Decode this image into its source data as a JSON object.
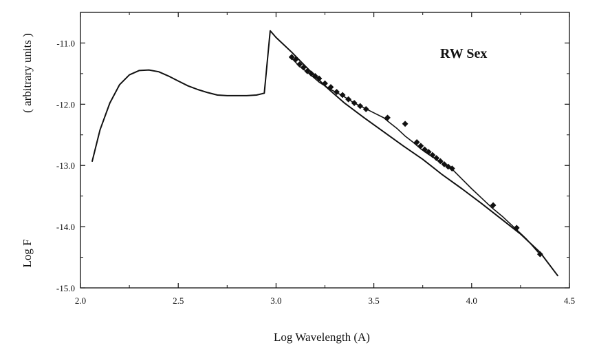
{
  "chart_data": {
    "type": "line",
    "title": "",
    "xlabel": "Log Wavelength (A)",
    "ylabel_main": "Log F",
    "ylabel_units": "( arbitrary units )",
    "annotation": "RW Sex",
    "xlim": [
      2.0,
      4.5
    ],
    "ylim": [
      -15.0,
      -10.5
    ],
    "xticks": [
      {
        "value": 2.0,
        "label": "2.0"
      },
      {
        "value": 2.5,
        "label": "2.5"
      },
      {
        "value": 3.0,
        "label": "3.0"
      },
      {
        "value": 3.5,
        "label": "3.5"
      },
      {
        "value": 4.0,
        "label": "4.0"
      },
      {
        "value": 4.5,
        "label": "4.5"
      }
    ],
    "yticks": [
      {
        "value": -11.0,
        "label": "-11.0"
      },
      {
        "value": -12.0,
        "label": "-12.0"
      },
      {
        "value": -13.0,
        "label": "-13.0"
      },
      {
        "value": -14.0,
        "label": "-14.0"
      },
      {
        "value": -15.0,
        "label": "-15.0"
      }
    ],
    "grid": false,
    "legend": "none",
    "series": [
      {
        "style": "model",
        "x": [
          2.06,
          2.1,
          2.15,
          2.2,
          2.25,
          2.3,
          2.35,
          2.4,
          2.45,
          2.5,
          2.55,
          2.6,
          2.65,
          2.7,
          2.75,
          2.8,
          2.85,
          2.9,
          2.94,
          2.97,
          3.0,
          3.03,
          3.08,
          3.15,
          3.25,
          3.35,
          3.45,
          3.55,
          3.65,
          3.75,
          3.85,
          3.95,
          4.05,
          4.15,
          4.25,
          4.35,
          4.44
        ],
        "y": [
          -12.93,
          -12.42,
          -11.98,
          -11.68,
          -11.52,
          -11.45,
          -11.44,
          -11.47,
          -11.54,
          -11.62,
          -11.7,
          -11.76,
          -11.81,
          -11.85,
          -11.86,
          -11.86,
          -11.86,
          -11.85,
          -11.82,
          -10.8,
          -10.91,
          -11.0,
          -11.15,
          -11.38,
          -11.7,
          -11.98,
          -12.22,
          -12.45,
          -12.68,
          -12.9,
          -13.15,
          -13.38,
          -13.62,
          -13.87,
          -14.12,
          -14.42,
          -14.8
        ]
      },
      {
        "style": "observed",
        "x": [
          3.08,
          3.12,
          3.17,
          3.22,
          3.28,
          3.34,
          3.4,
          3.45,
          3.5,
          3.55,
          3.58,
          3.62,
          3.66,
          3.7,
          3.74,
          3.78,
          3.82,
          3.86,
          3.9,
          3.95,
          4.0,
          4.05,
          4.1,
          4.16,
          4.22,
          4.28,
          4.34
        ],
        "y": [
          -11.25,
          -11.38,
          -11.5,
          -11.64,
          -11.76,
          -11.86,
          -11.98,
          -12.06,
          -12.14,
          -12.22,
          -12.3,
          -12.4,
          -12.52,
          -12.62,
          -12.73,
          -12.82,
          -12.9,
          -12.98,
          -13.06,
          -13.22,
          -13.38,
          -13.53,
          -13.68,
          -13.84,
          -14.02,
          -14.2,
          -14.42
        ]
      },
      {
        "style": "observed-markers",
        "x": [
          3.08,
          3.1,
          3.12,
          3.14,
          3.16,
          3.18,
          3.2,
          3.22,
          3.25,
          3.28,
          3.31,
          3.34,
          3.37,
          3.4,
          3.43,
          3.46,
          3.57,
          3.66,
          3.72,
          3.74,
          3.76,
          3.78,
          3.8,
          3.82,
          3.84,
          3.86,
          3.88,
          3.9,
          4.11,
          4.23,
          4.35
        ],
        "y": [
          -11.23,
          -11.27,
          -11.35,
          -11.4,
          -11.46,
          -11.5,
          -11.54,
          -11.58,
          -11.66,
          -11.72,
          -11.8,
          -11.85,
          -11.92,
          -11.98,
          -12.03,
          -12.08,
          -12.22,
          -12.32,
          -12.62,
          -12.68,
          -12.74,
          -12.78,
          -12.83,
          -12.88,
          -12.93,
          -12.98,
          -13.02,
          -13.05,
          -13.65,
          -14.02,
          -14.45
        ]
      }
    ]
  }
}
